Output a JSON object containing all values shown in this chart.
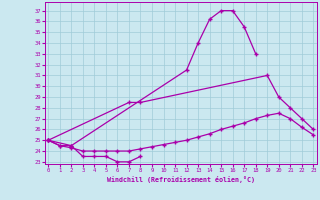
{
  "xlabel": "Windchill (Refroidissement éolien,°C)",
  "background_color": "#cbe8f0",
  "line_color": "#aa00aa",
  "grid_color": "#a0ccd8",
  "line1_x": [
    0,
    1,
    2,
    12,
    13,
    14,
    15,
    16,
    17,
    18
  ],
  "line1_y": [
    25.0,
    24.5,
    24.5,
    31.5,
    34.0,
    36.2,
    37.0,
    37.0,
    35.5,
    33.0
  ],
  "line2_x": [
    0,
    7,
    8,
    19,
    20,
    21,
    22,
    23
  ],
  "line2_y": [
    25.0,
    28.5,
    28.5,
    31.0,
    29.0,
    28.0,
    27.0,
    26.0
  ],
  "line3_x": [
    0,
    2,
    3,
    4,
    5,
    6,
    7,
    8
  ],
  "line3_y": [
    25.0,
    24.5,
    23.5,
    23.5,
    23.5,
    23.0,
    23.0,
    23.5
  ],
  "line4_x": [
    0,
    1,
    2,
    3,
    4,
    5,
    6,
    7,
    8,
    9,
    10,
    11,
    12,
    13,
    14,
    15,
    16,
    17,
    18,
    19,
    20,
    21,
    22,
    23
  ],
  "line4_y": [
    25.0,
    24.5,
    24.3,
    24.0,
    24.0,
    24.0,
    24.0,
    24.0,
    24.2,
    24.4,
    24.6,
    24.8,
    25.0,
    25.3,
    25.6,
    26.0,
    26.3,
    26.6,
    27.0,
    27.3,
    27.5,
    27.0,
    26.2,
    25.5
  ],
  "ylim_min": 22.8,
  "ylim_max": 37.8,
  "xlim_min": -0.3,
  "xlim_max": 23.3,
  "yticks": [
    23,
    24,
    25,
    26,
    27,
    28,
    29,
    30,
    31,
    32,
    33,
    34,
    35,
    36,
    37
  ],
  "xticks": [
    0,
    1,
    2,
    3,
    4,
    5,
    6,
    7,
    8,
    9,
    10,
    11,
    12,
    13,
    14,
    15,
    16,
    17,
    18,
    19,
    20,
    21,
    22,
    23
  ]
}
